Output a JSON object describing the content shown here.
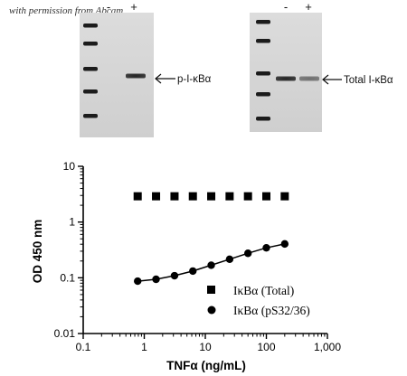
{
  "credit": "with permission from Abcam",
  "blots": [
    {
      "name": "phospho",
      "lanes": [
        "-",
        "+"
      ],
      "label": "p-I-κBα",
      "band_intensity": [
        0.0,
        0.95
      ]
    },
    {
      "name": "total",
      "lanes": [
        "-",
        "+"
      ],
      "label": "Total I-κBα",
      "band_intensity": [
        0.95,
        0.55
      ]
    }
  ],
  "chart_data": {
    "type": "scatter",
    "title": "",
    "xlabel": "TNFα (ng/mL)",
    "ylabel": "OD 450 nm",
    "xscale": "log",
    "yscale": "log",
    "xlim": [
      0.1,
      1000
    ],
    "ylim": [
      0.01,
      10
    ],
    "x_ticks": [
      "0.1",
      "1",
      "10",
      "100",
      "1,000"
    ],
    "y_ticks": [
      "0.01",
      "0.1",
      "1",
      "10"
    ],
    "legend_position": "bottom-right",
    "series": [
      {
        "name": "IκBα (Total)",
        "marker": "square",
        "line": false,
        "x": [
          0.78,
          1.56,
          3.13,
          6.25,
          12.5,
          25,
          50,
          100,
          200
        ],
        "y": [
          2.9,
          2.9,
          2.9,
          2.9,
          2.9,
          2.9,
          2.9,
          2.9,
          2.9
        ]
      },
      {
        "name": "IκBα (pS32/36)",
        "marker": "circle",
        "line": true,
        "x": [
          0.78,
          1.56,
          3.13,
          6.25,
          12.5,
          25,
          50,
          100,
          200
        ],
        "y": [
          0.087,
          0.094,
          0.109,
          0.132,
          0.168,
          0.215,
          0.275,
          0.345,
          0.405
        ]
      }
    ]
  }
}
